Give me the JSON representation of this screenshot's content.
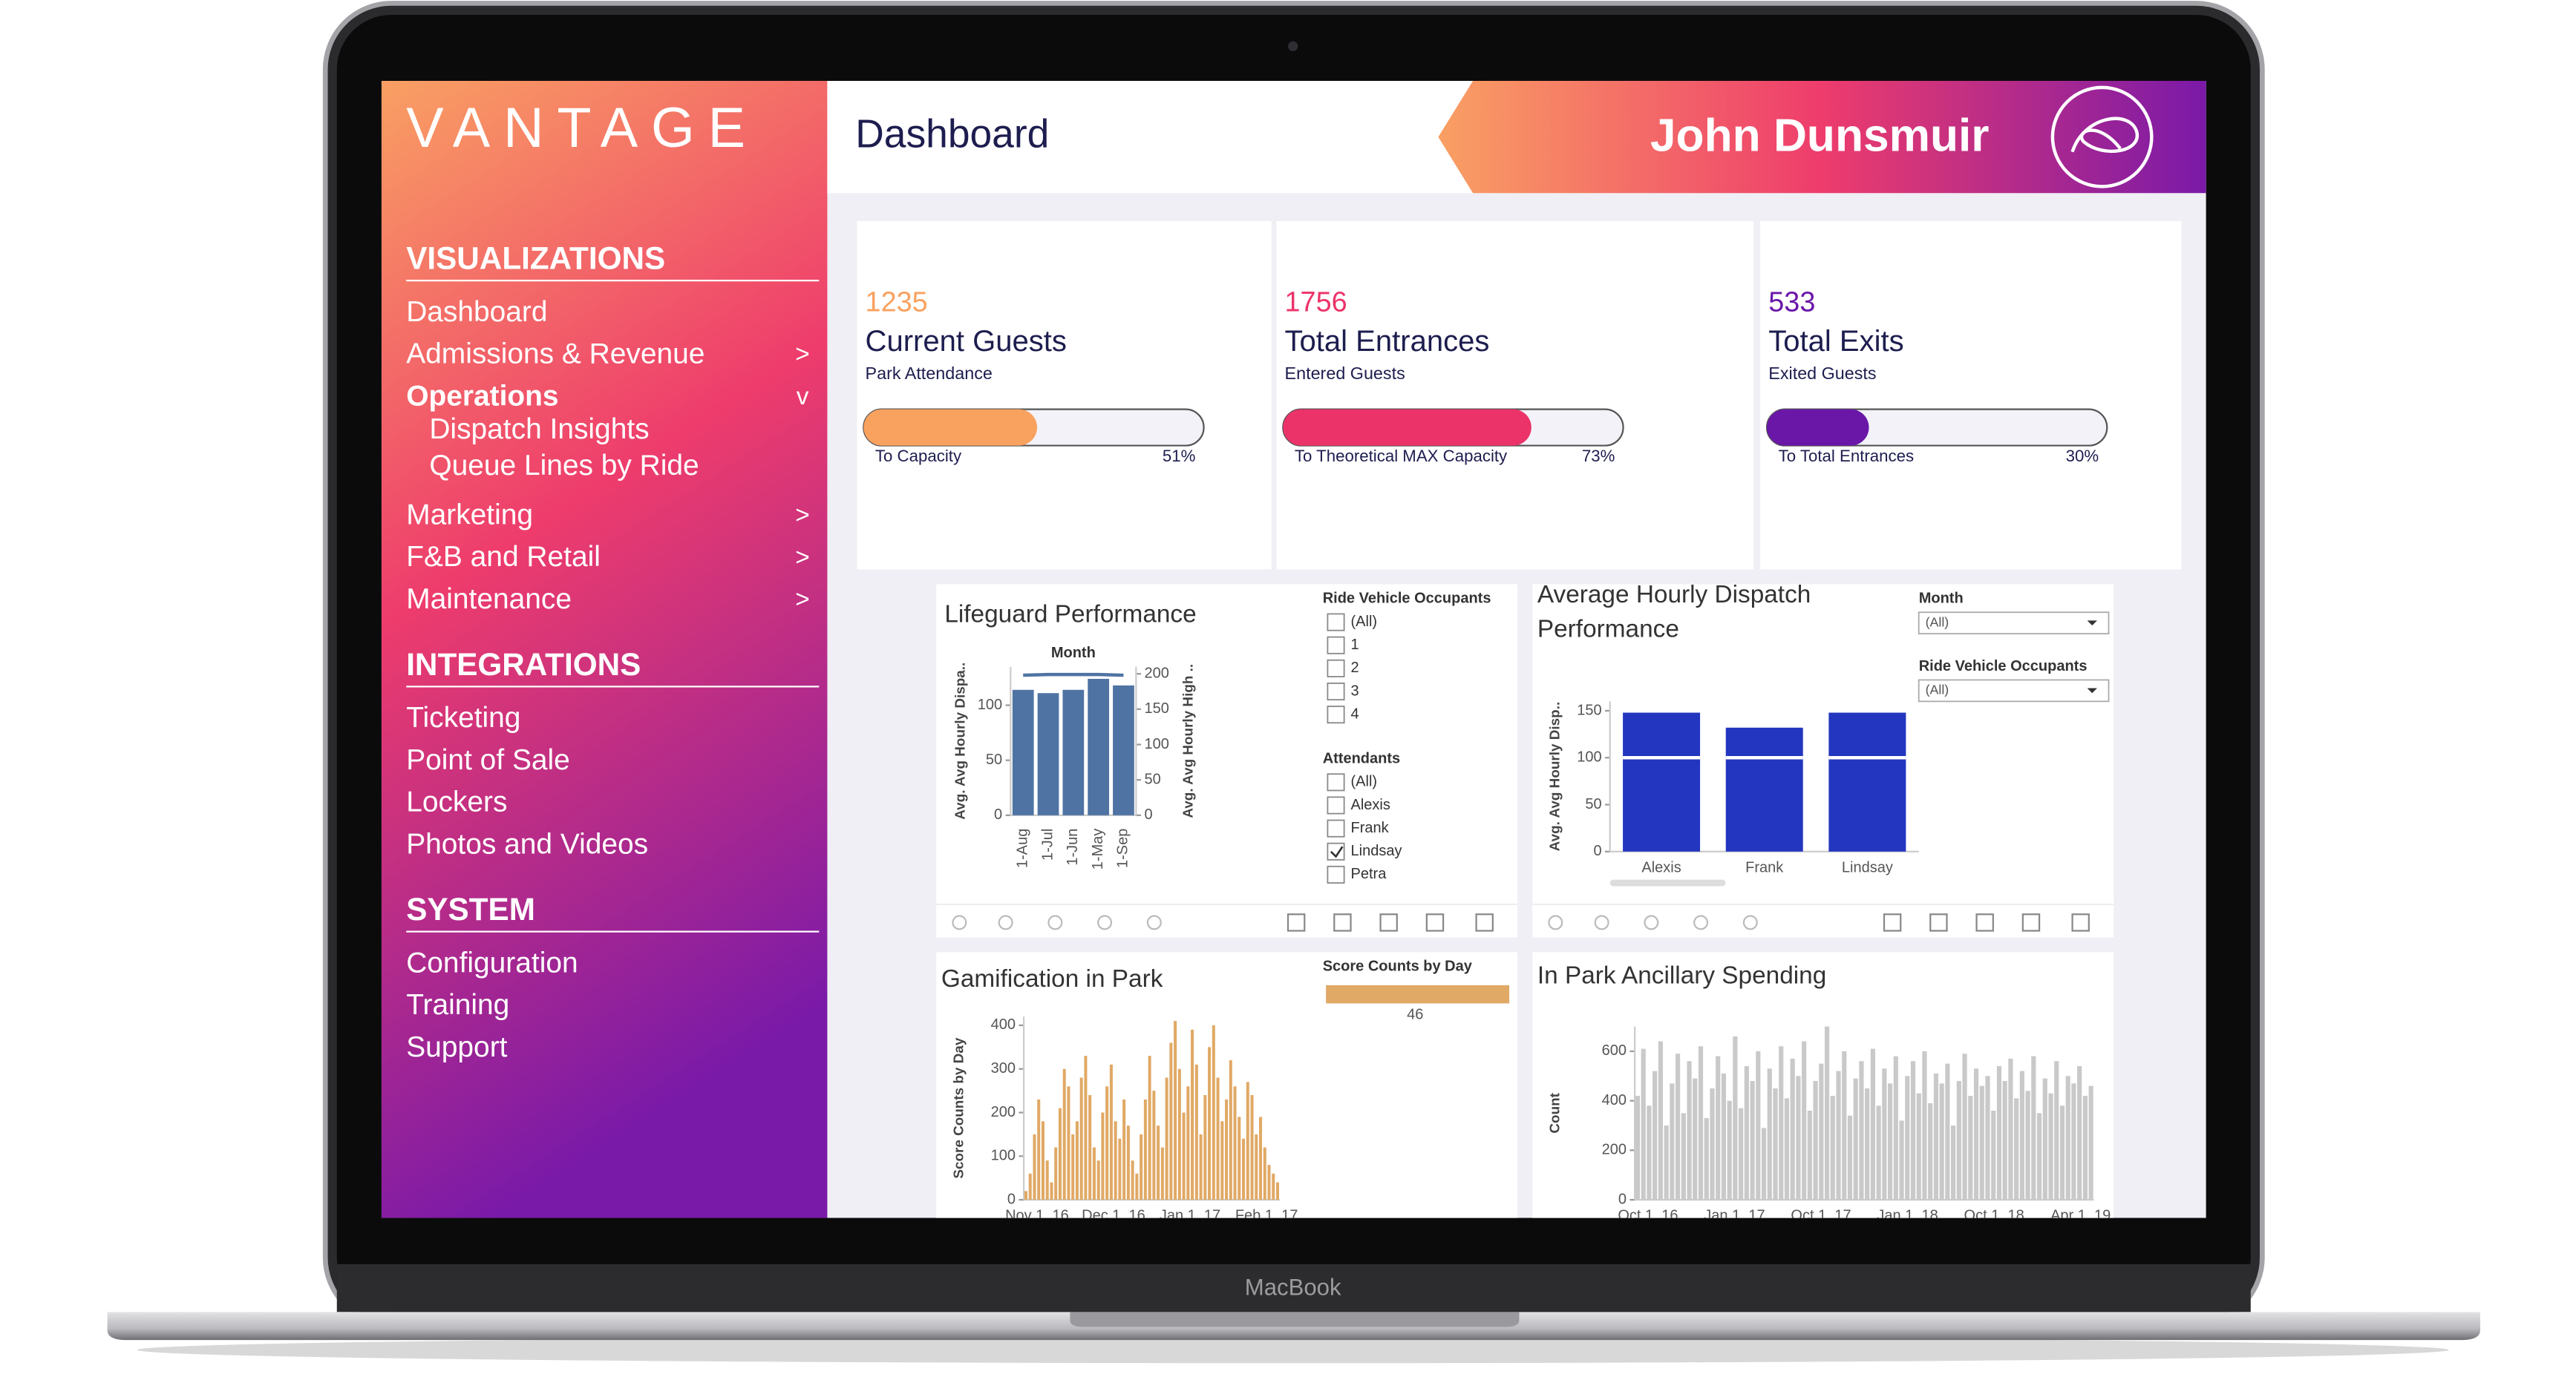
{
  "brand": "VANTAGE",
  "device_label": "MacBook",
  "header": {
    "title": "Dashboard",
    "user": "John Dunsmuir"
  },
  "sidebar": {
    "sections": [
      {
        "title": "VISUALIZATIONS",
        "items": [
          {
            "label": "Dashboard"
          },
          {
            "label": "Admissions & Revenue",
            "arrow": ">"
          },
          {
            "label": "Operations",
            "arrow": "v",
            "children": [
              "Dispatch Insights",
              "Queue Lines by Ride"
            ]
          },
          {
            "label": "Marketing",
            "arrow": ">"
          },
          {
            "label": "F&B and Retail",
            "arrow": ">"
          },
          {
            "label": "Maintenance",
            "arrow": ">"
          }
        ]
      },
      {
        "title": "INTEGRATIONS",
        "items": [
          {
            "label": "Ticketing"
          },
          {
            "label": "Point of Sale"
          },
          {
            "label": "Lockers"
          },
          {
            "label": "Photos and Videos"
          }
        ]
      },
      {
        "title": "SYSTEM",
        "items": [
          {
            "label": "Configuration"
          },
          {
            "label": "Training"
          },
          {
            "label": "Support"
          }
        ]
      }
    ]
  },
  "kpis": [
    {
      "value": 1235,
      "title": "Current Guests",
      "subtitle": "Park Attendance",
      "progress_label": "To Capacity",
      "percent": 51,
      "percent_label": "51%",
      "color": "#f9a15f"
    },
    {
      "value": 1756,
      "title": "Total Entrances",
      "subtitle": "Entered Guests",
      "progress_label": "To Theoretical MAX Capacity",
      "percent": 73,
      "percent_label": "73%",
      "color": "#ec3369"
    },
    {
      "value": 533,
      "title": "Total Exits",
      "subtitle": "Exited Guests",
      "progress_label": "To Total Entrances",
      "percent": 30,
      "percent_label": "30%",
      "color": "#6a17a8"
    }
  ],
  "filters": [
    {
      "title": "Ride Vehicle Occupants",
      "options": [
        {
          "label": "(All)"
        },
        {
          "label": "1"
        },
        {
          "label": "2"
        },
        {
          "label": "3"
        },
        {
          "label": "4"
        }
      ]
    },
    {
      "title": "Attendants",
      "options": [
        {
          "label": "(All)"
        },
        {
          "label": "Alexis"
        },
        {
          "label": "Frank"
        },
        {
          "label": "Lindsay",
          "checked": true
        },
        {
          "label": "Petra"
        }
      ]
    }
  ],
  "dropdowns": [
    {
      "title": "Month",
      "value": "(All)"
    },
    {
      "title": "Ride Vehicle Occupants",
      "value": "(All)"
    }
  ],
  "chart_data": [
    {
      "type": "bar",
      "title": "Lifeguard Performance",
      "xlabel": "Month",
      "ylabel": "Avg. Avg Hourly Dispa..",
      "y2label": "Avg. Avg Hourly High ..",
      "categories": [
        "1-Aug",
        "1-Jul",
        "1-Jun",
        "1-May",
        "1-Sep"
      ],
      "series": [
        {
          "values": [
            114,
            111,
            114,
            124,
            118
          ],
          "color": "#4f73a3"
        },
        {
          "values": [
            198,
            199,
            199,
            199,
            198
          ],
          "color": "#4f73a3",
          "axis": "y2",
          "kind": "line"
        }
      ],
      "ylim": [
        0,
        135
      ],
      "yticks": [
        0,
        50,
        100
      ],
      "y2lim": [
        0,
        210
      ],
      "y2ticks": [
        0,
        50,
        100,
        150,
        200
      ]
    },
    {
      "type": "bar",
      "title": "Average Hourly Dispatch Performance",
      "ylabel": "Avg. Avg Hourly Disp..",
      "categories": [
        "Alexis",
        "Frank",
        "Lindsay"
      ],
      "series": [
        {
          "values": [
            148,
            132,
            148
          ],
          "color": "#2336bf"
        },
        {
          "values": [
            100,
            100,
            100
          ],
          "color": "#ffffff",
          "kind": "ref"
        }
      ],
      "ylim": [
        0,
        160
      ],
      "yticks": [
        0,
        50,
        100,
        150
      ]
    },
    {
      "type": "bar",
      "title": "Gamification in Park",
      "ylabel": "Score Counts by Day",
      "legend": {
        "title": "Score Counts by Day",
        "value": 46,
        "color": "#e0a965"
      },
      "xtick_labels": [
        "Nov 1, 16",
        "Dec 1, 16",
        "Jan 1, 17",
        "Feb 1, 17"
      ],
      "series": [
        {
          "color": "#e0a965",
          "values": [
            20,
            60,
            150,
            230,
            180,
            90,
            40,
            120,
            210,
            300,
            260,
            150,
            180,
            280,
            330,
            240,
            120,
            90,
            200,
            260,
            310,
            180,
            140,
            230,
            170,
            90,
            60,
            150,
            230,
            330,
            250,
            170,
            120,
            280,
            360,
            410,
            300,
            200,
            260,
            390,
            310,
            150,
            240,
            350,
            400,
            280,
            180,
            230,
            320,
            260,
            190,
            140,
            270,
            240,
            150,
            190,
            120,
            80,
            60,
            40
          ]
        }
      ],
      "ylim": [
        0,
        420
      ],
      "yticks": [
        0,
        100,
        200,
        300,
        400
      ]
    },
    {
      "type": "bar",
      "title": "In Park Ancillary Spending",
      "ylabel": "Count",
      "xtick_labels": [
        "Oct 1, 16",
        "Jan 1, 17",
        "Oct 1, 17",
        "Jan 1, 18",
        "Oct 1, 18",
        "Apr 1, 19"
      ],
      "series": [
        {
          "color": "#c9c9c9",
          "values": [
            420,
            610,
            380,
            520,
            640,
            300,
            470,
            590,
            350,
            560,
            490,
            620,
            330,
            450,
            580,
            510,
            400,
            660,
            370,
            540,
            480,
            600,
            290,
            530,
            450,
            620,
            410,
            570,
            500,
            640,
            360,
            480,
            550,
            700,
            420,
            520,
            600,
            340,
            490,
            560,
            450,
            610,
            380,
            530,
            470,
            580,
            320,
            500,
            560,
            430,
            600,
            390,
            510,
            470,
            550,
            300,
            480,
            590,
            420,
            530,
            460,
            500,
            360,
            540,
            480,
            570,
            410,
            520,
            440,
            580,
            350,
            490,
            430,
            560,
            380,
            500,
            470,
            540,
            420,
            460
          ]
        }
      ],
      "ylim": [
        0,
        700
      ],
      "yticks": [
        0,
        200,
        400,
        600
      ]
    }
  ]
}
